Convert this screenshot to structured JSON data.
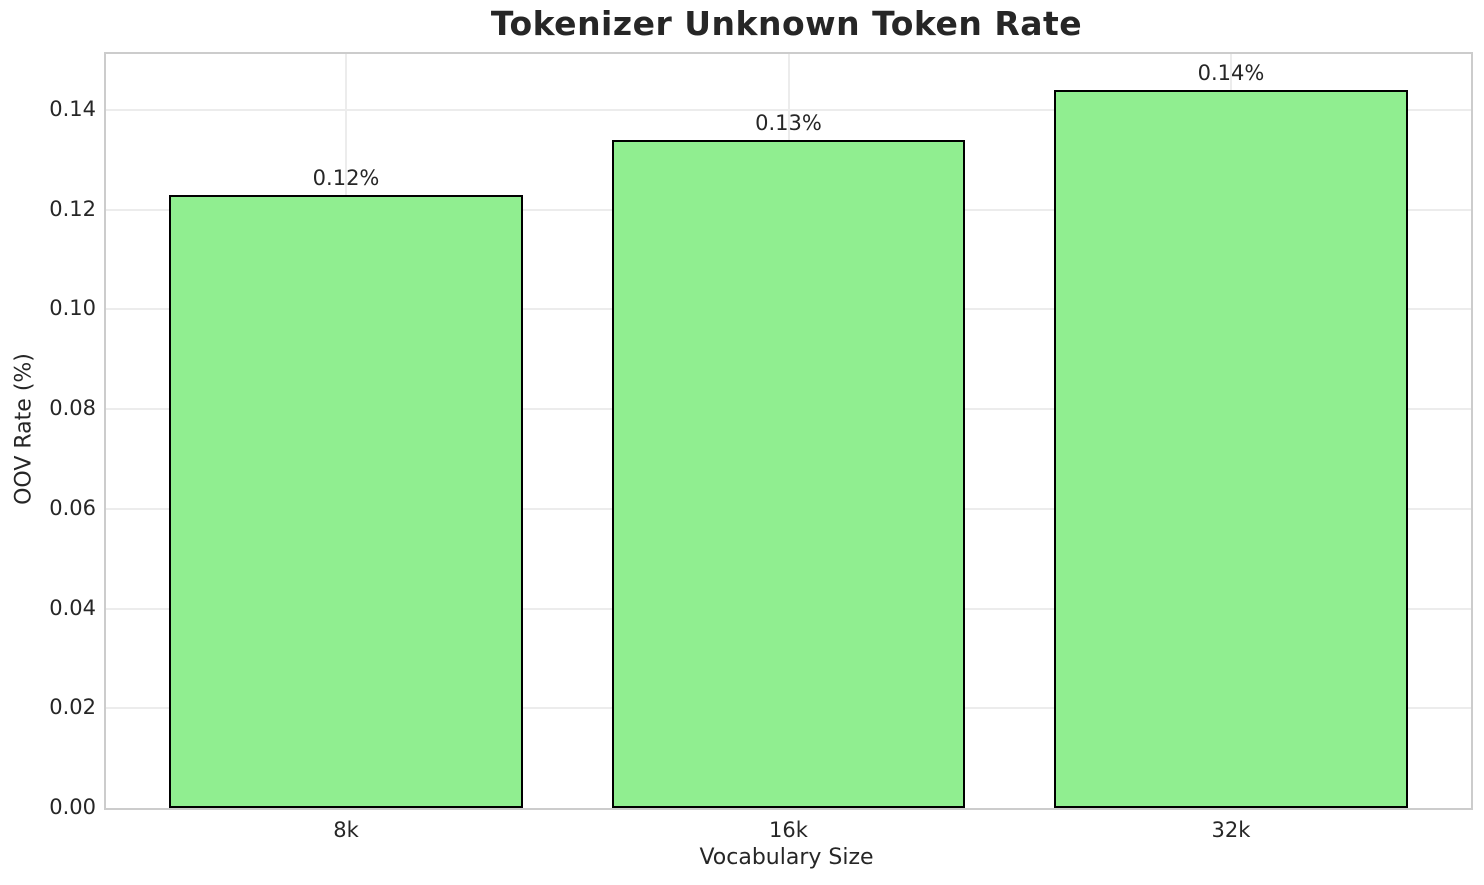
{
  "chart_data": {
    "type": "bar",
    "title": "Tokenizer Unknown Token Rate",
    "xlabel": "Vocabulary Size",
    "ylabel": "OOV Rate (%)",
    "categories": [
      "8k",
      "16k",
      "32k"
    ],
    "values": [
      0.123,
      0.134,
      0.144
    ],
    "bar_labels": [
      "0.12%",
      "0.13%",
      "0.14%"
    ],
    "ylim": [
      0,
      0.1512
    ],
    "yticks": [
      0,
      0.02,
      0.04,
      0.06,
      0.08,
      0.1,
      0.12,
      0.14
    ],
    "ytick_labels": [
      "0.00",
      "0.02",
      "0.04",
      "0.06",
      "0.08",
      "0.10",
      "0.12",
      "0.14"
    ],
    "grid": true,
    "legend": "none",
    "colors": {
      "bar_fill": "#90EE90",
      "bar_edge": "#000000",
      "grid": "#ececec",
      "spine": "#cccccc",
      "text": "#262626",
      "background": "#ffffff"
    },
    "layout": {
      "bar_width_fraction": 0.8,
      "x_margin": 0.5425
    }
  }
}
